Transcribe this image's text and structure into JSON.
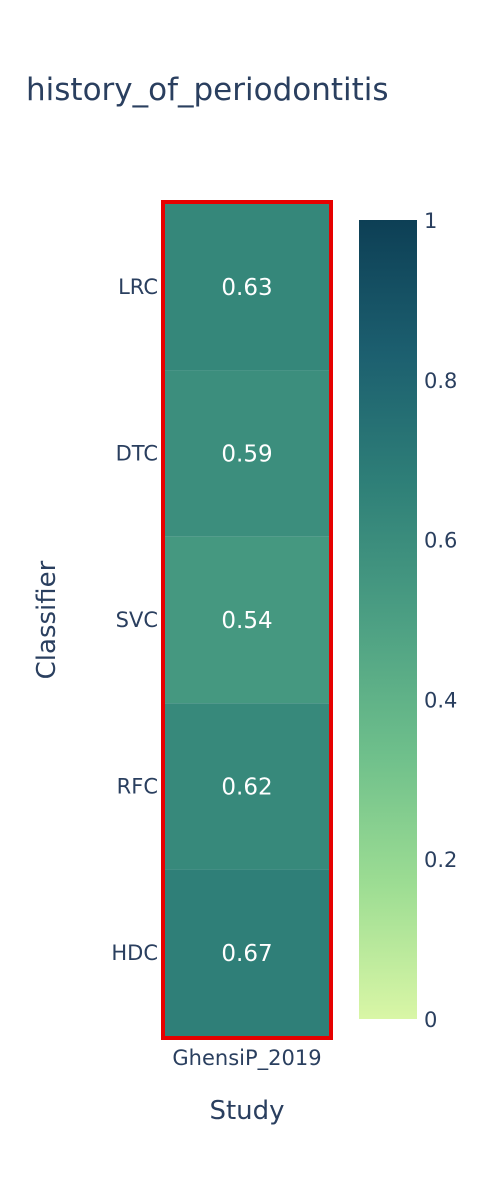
{
  "chart_data": {
    "type": "heatmap",
    "title": "history_of_periodontitis",
    "xlabel": "Study",
    "ylabel": "Classifier",
    "x": [
      "GhensiP_2019"
    ],
    "y": [
      "LRC",
      "DTC",
      "SVC",
      "RFC",
      "HDC"
    ],
    "z": [
      [
        0.63
      ],
      [
        0.59
      ],
      [
        0.54
      ],
      [
        0.62
      ],
      [
        0.67
      ]
    ],
    "text": [
      [
        "0.63"
      ],
      [
        "0.59"
      ],
      [
        "0.54"
      ],
      [
        "0.62"
      ],
      [
        "0.67"
      ]
    ],
    "zlim": [
      0,
      1
    ],
    "colorbar_ticks": [
      "0",
      "0.2",
      "0.4",
      "0.6",
      "0.8",
      "1"
    ],
    "colorscale": [
      "#d9f6a6",
      "#9ddd93",
      "#6ebf8b",
      "#4c9f83",
      "#2f8078",
      "#1c5f6f",
      "#0d3f55"
    ],
    "highlight_color": "#e60000"
  }
}
